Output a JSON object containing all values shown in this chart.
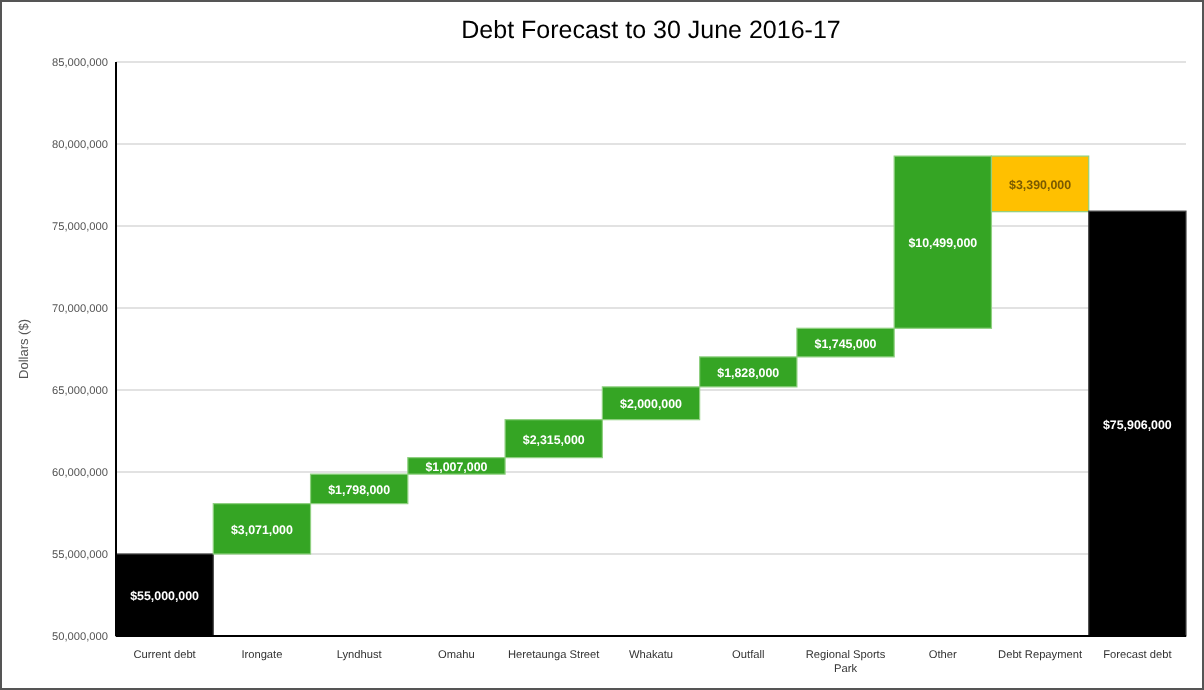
{
  "chart_data": {
    "type": "bar",
    "title": "Debt Forecast to 30 June 2016-17",
    "ylabel": "Dollars ($)",
    "categories": [
      "Current debt",
      "Irongate",
      "Lyndhust",
      "Omahu",
      "Heretaunga Street",
      "Whakatu",
      "Outfall",
      "Regional Sports Park",
      "Other",
      "Debt Repayment",
      "Forecast debt"
    ],
    "values": [
      55000000,
      3071000,
      1798000,
      1007000,
      2315000,
      2000000,
      1828000,
      1745000,
      10499000,
      -3390000,
      75906000
    ],
    "base": [
      null,
      55000000,
      58071000,
      59869000,
      60876000,
      63191000,
      65191000,
      67019000,
      68764000,
      79263000,
      null
    ],
    "colors": [
      "#000000",
      "#35a524",
      "#35a524",
      "#35a524",
      "#35a524",
      "#35a524",
      "#35a524",
      "#35a524",
      "#35a524",
      "#ffc000",
      "#000000"
    ],
    "value_labels": [
      "$55,000,000",
      "$3,071,000",
      "$1,798,000",
      "$1,007,000",
      "$2,315,000",
      "$2,000,000",
      "$1,828,000",
      "$1,745,000",
      "$10,499,000",
      "$3,390,000",
      "$75,906,000"
    ],
    "ylim": [
      50000000,
      85000000
    ],
    "yticks": [
      {
        "value": 50000000,
        "label": "50,000,000"
      },
      {
        "value": 55000000,
        "label": "55,000,000"
      },
      {
        "value": 60000000,
        "label": "60,000,000"
      },
      {
        "value": 65000000,
        "label": "65,000,000"
      },
      {
        "value": 70000000,
        "label": "70,000,000"
      },
      {
        "value": 75000000,
        "label": "75,000,000"
      },
      {
        "value": 80000000,
        "label": "80,000,000"
      },
      {
        "value": 85000000,
        "label": "85,000,000"
      }
    ],
    "grid": "y"
  }
}
